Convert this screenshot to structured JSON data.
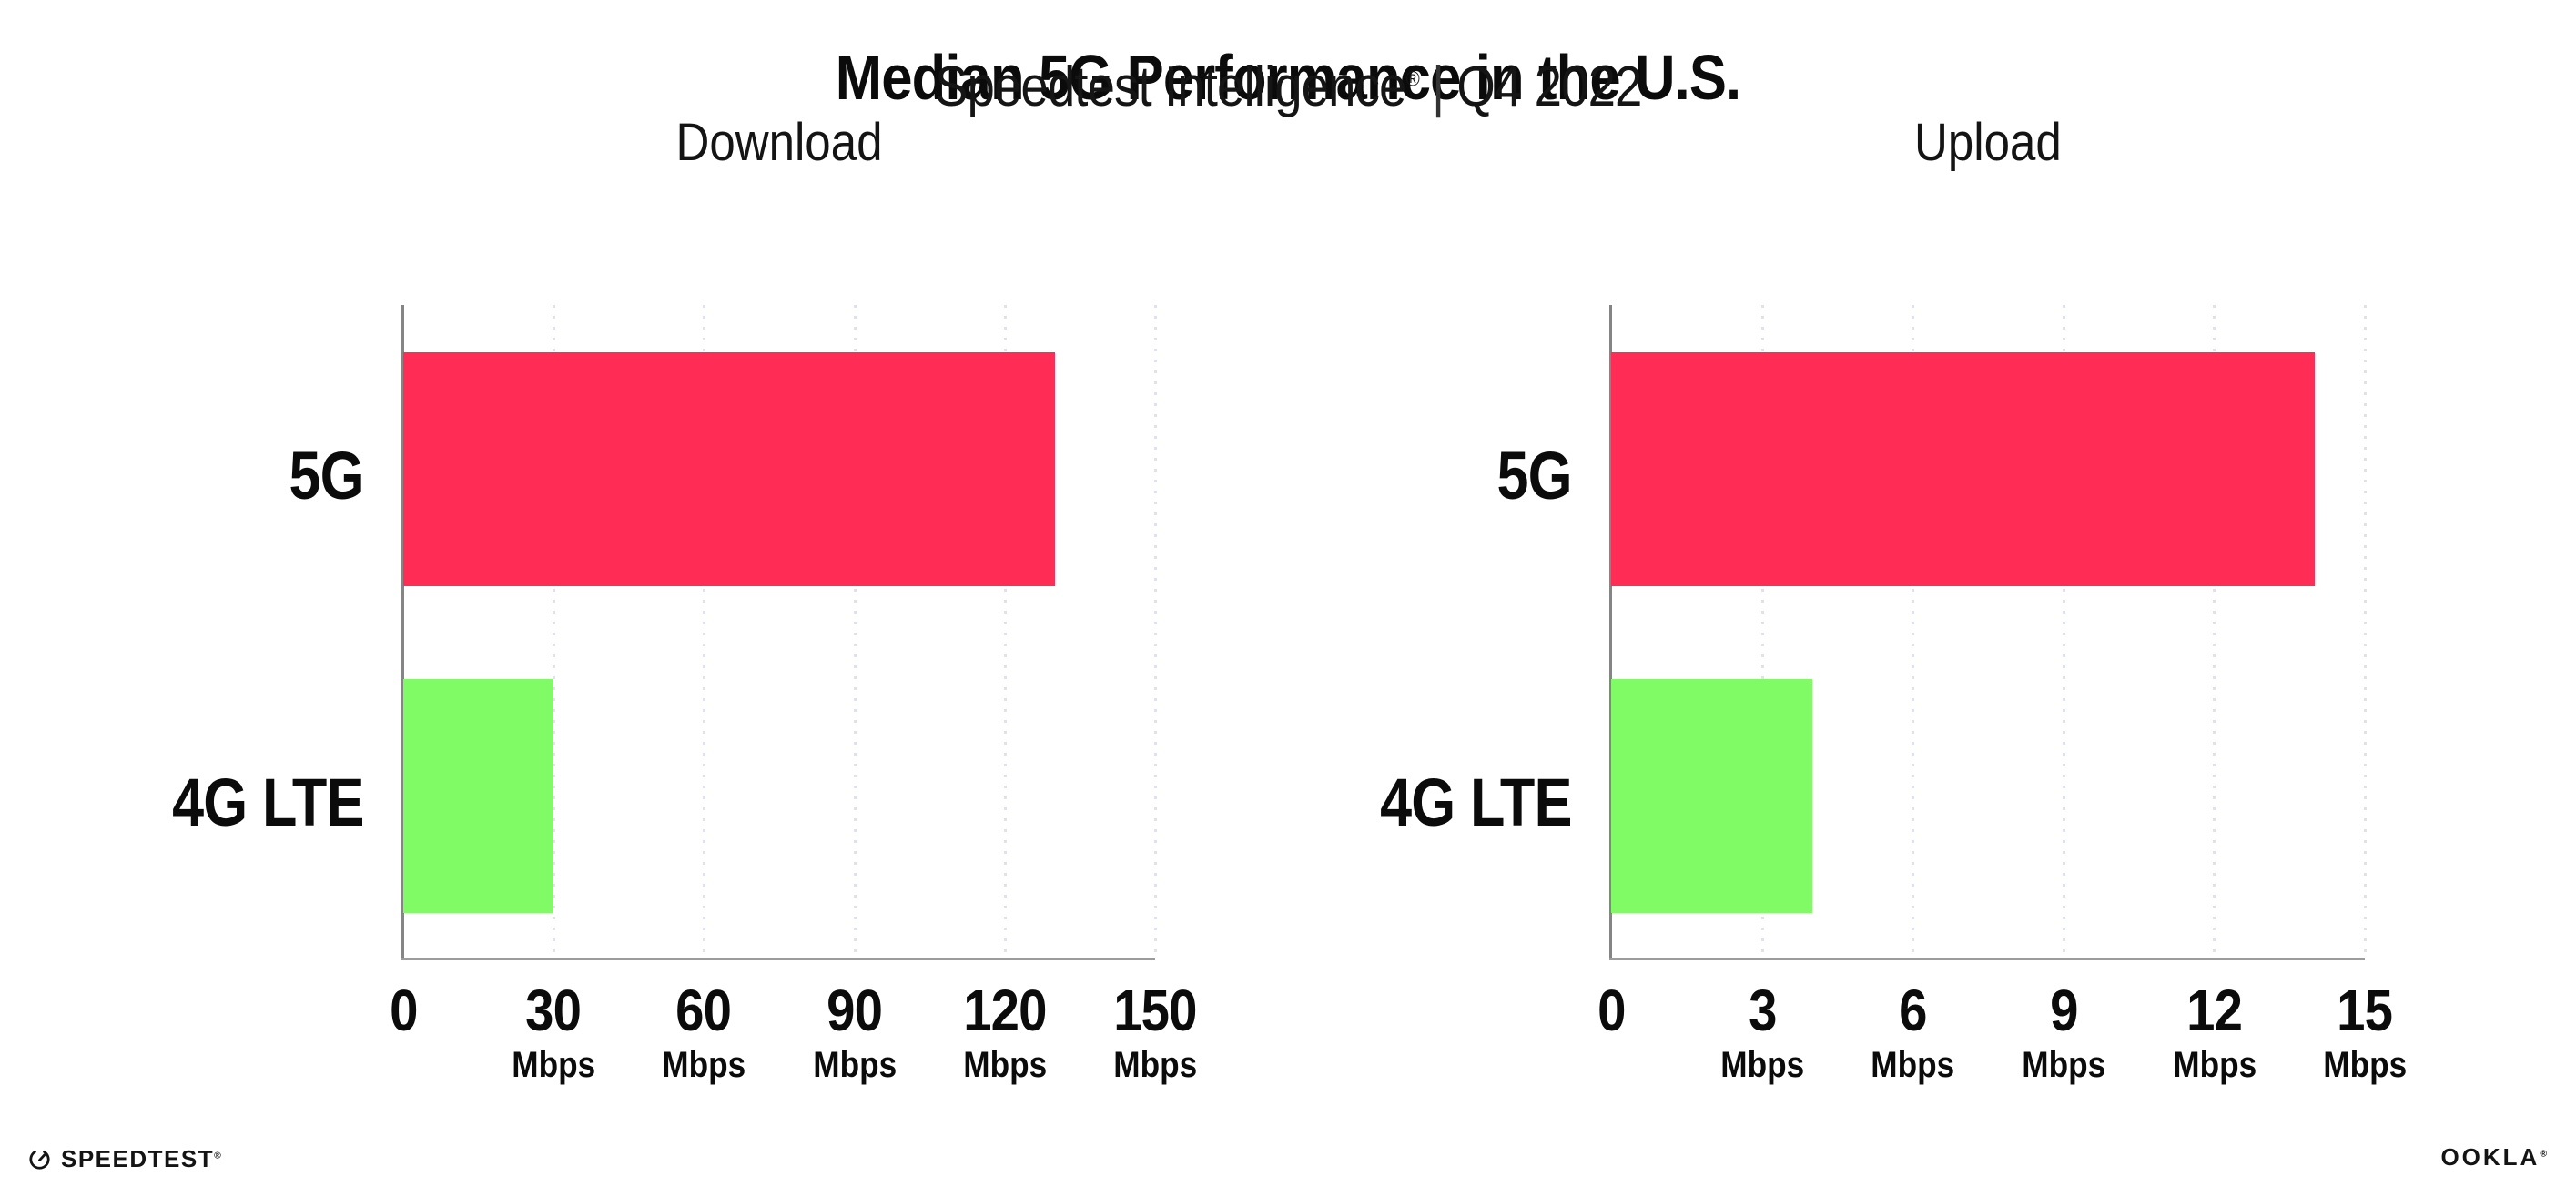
{
  "header": {
    "title": "Median 5G Performance in the U.S.",
    "subtitle": {
      "brand": "Speedtest Intelligence",
      "registered": "®",
      "separator": "|",
      "period": "Q4 2022"
    }
  },
  "footer": {
    "speedtest": {
      "label": "SPEEDTEST",
      "mark": "®",
      "icon": "speedtest-gauge-icon"
    },
    "ookla": {
      "label": "OOKLA",
      "mark": "®"
    }
  },
  "colors": {
    "bar_5g": "#ff2d55",
    "bar_4g": "#80fb66",
    "axis_y": "#858585",
    "axis_x": "#9c9c9c",
    "grid": "#e0e1ee",
    "text": "#0b0b0b"
  },
  "chart_data": [
    {
      "type": "bar",
      "orientation": "horizontal",
      "title": "Download",
      "categories": [
        "5G",
        "4G LTE"
      ],
      "values": [
        130,
        30
      ],
      "unit": "Mbps",
      "xlim": [
        0,
        150
      ],
      "xticks": [
        0,
        30,
        60,
        90,
        120,
        150
      ],
      "grid": "dotted vertical gridlines at each tick",
      "legend": "none",
      "bar_colors": [
        "#ff2d55",
        "#80fb66"
      ]
    },
    {
      "type": "bar",
      "orientation": "horizontal",
      "title": "Upload",
      "categories": [
        "5G",
        "4G LTE"
      ],
      "values": [
        14,
        4
      ],
      "unit": "Mbps",
      "xlim": [
        0,
        15
      ],
      "xticks": [
        0,
        3,
        6,
        9,
        12,
        15
      ],
      "grid": "dotted vertical gridlines at each tick",
      "legend": "none",
      "bar_colors": [
        "#ff2d55",
        "#80fb66"
      ]
    }
  ]
}
